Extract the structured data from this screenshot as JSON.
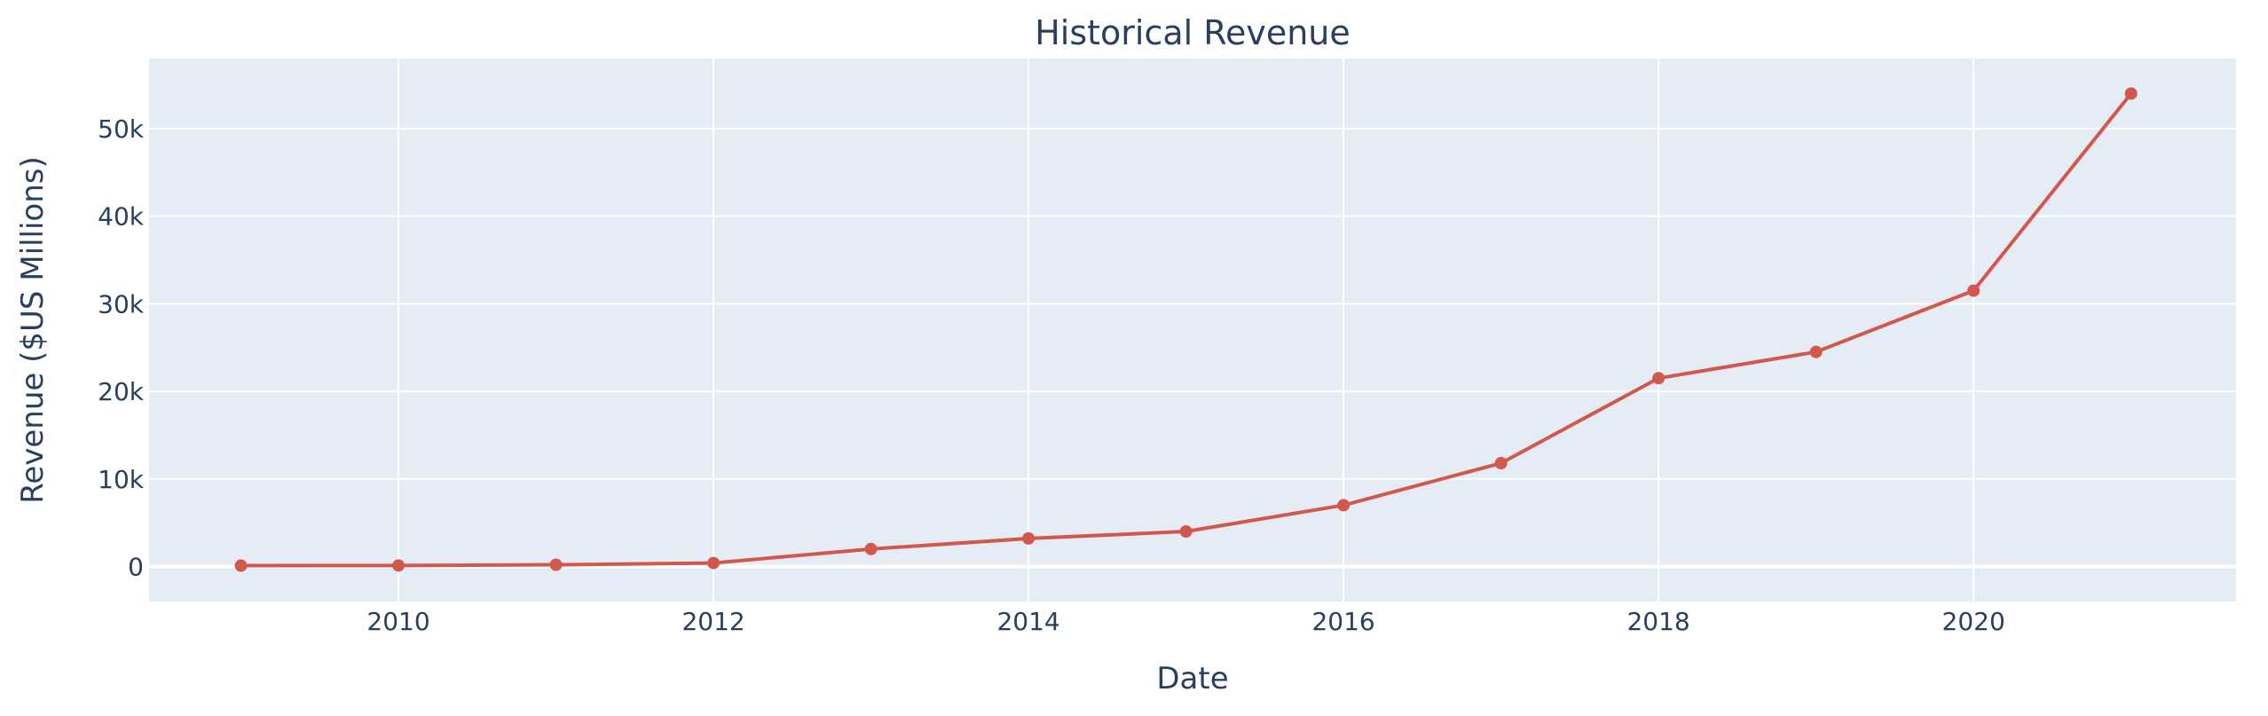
{
  "chart_data": {
    "type": "line",
    "title": "Historical Revenue",
    "xlabel": "Date",
    "ylabel": "Revenue ($US Millions)",
    "x_ticks": [
      "2010",
      "2012",
      "2014",
      "2016",
      "2018",
      "2020"
    ],
    "y_ticks": [
      "0",
      "10k",
      "20k",
      "30k",
      "40k",
      "50k"
    ],
    "xlim": [
      "2008-06",
      "2021-09"
    ],
    "ylim": [
      -4000,
      58000
    ],
    "grid": true,
    "legend": "none",
    "series": [
      {
        "x": [
          "2009",
          "2010",
          "2011",
          "2012",
          "2013",
          "2014",
          "2015",
          "2016",
          "2017",
          "2018",
          "2019",
          "2020",
          "2021"
        ],
        "values": [
          100,
          120,
          200,
          400,
          2000,
          3200,
          4000,
          7000,
          11800,
          21500,
          24500,
          31500,
          54000
        ]
      }
    ],
    "colors": {
      "plot_bg": "#e5ecf6",
      "grid": "#ffffff",
      "line": "#d1584a",
      "text": "#2a3f5f"
    }
  }
}
